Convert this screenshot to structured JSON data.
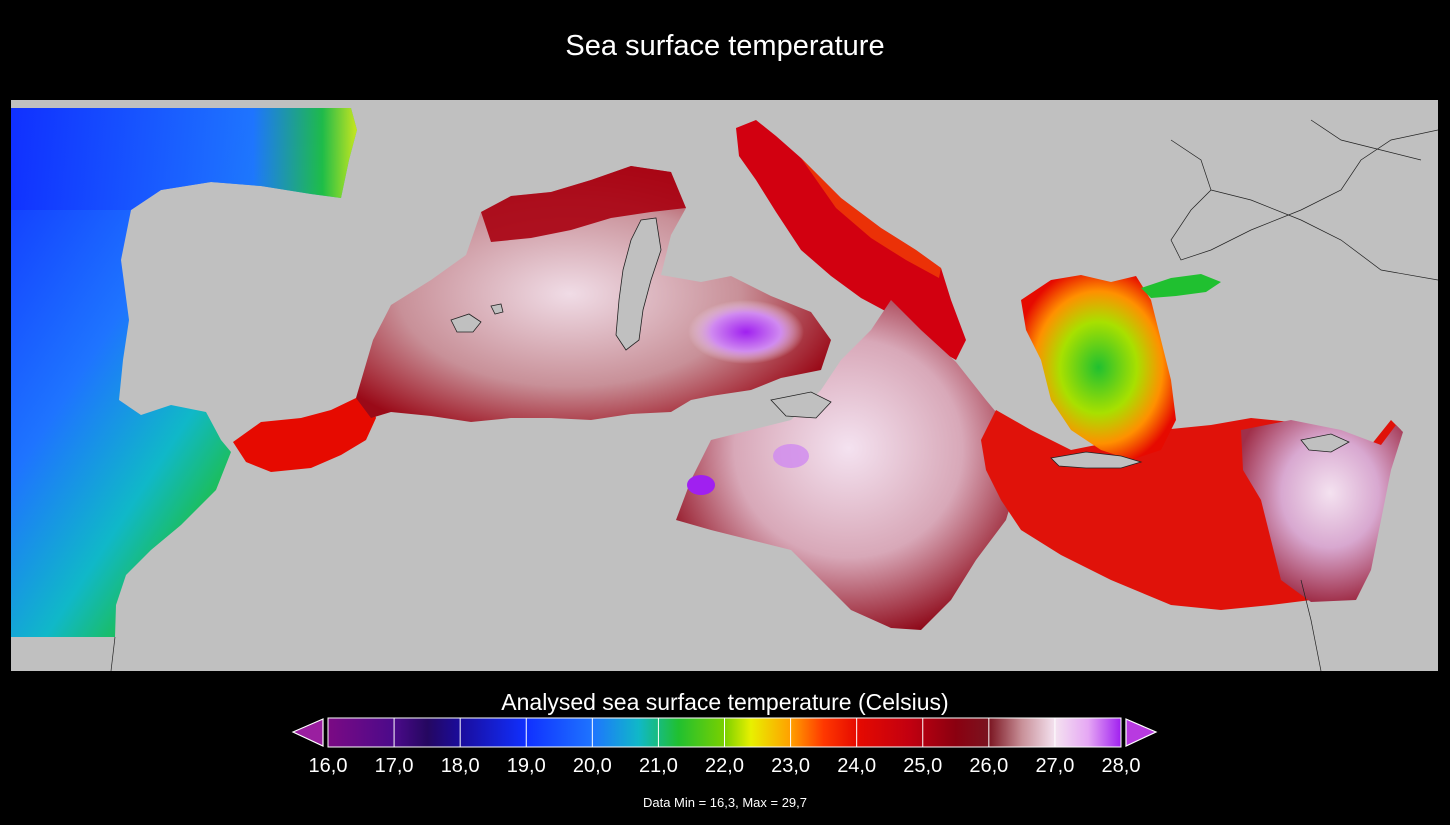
{
  "title": "Sea surface temperature",
  "map": {
    "region": "Mediterranean Sea",
    "land_color": "#c0c0c0",
    "coastline_color": "#222222"
  },
  "colorbar": {
    "label": "Analysed sea surface temperature (Celsius)",
    "min": 16.0,
    "max": 28.0,
    "ticks": [
      "16,0",
      "17,0",
      "18,0",
      "19,0",
      "20,0",
      "21,0",
      "22,0",
      "23,0",
      "24,0",
      "25,0",
      "26,0",
      "27,0",
      "28,0"
    ],
    "extend_low_color": "#9a1fa0",
    "extend_high_color": "#b83ae0",
    "stops": [
      {
        "value": 16.0,
        "color": "#7b0a84"
      },
      {
        "value": 17.0,
        "color": "#4b0a8a"
      },
      {
        "value": 17.5,
        "color": "#250760"
      },
      {
        "value": 18.0,
        "color": "#1a0c9c"
      },
      {
        "value": 19.0,
        "color": "#1030ff"
      },
      {
        "value": 20.0,
        "color": "#1e74ff"
      },
      {
        "value": 20.7,
        "color": "#10b8c8"
      },
      {
        "value": 21.3,
        "color": "#20c030"
      },
      {
        "value": 22.0,
        "color": "#7ad000"
      },
      {
        "value": 22.4,
        "color": "#e8f000"
      },
      {
        "value": 23.0,
        "color": "#ffa000"
      },
      {
        "value": 23.5,
        "color": "#ff3800"
      },
      {
        "value": 24.0,
        "color": "#e60a00"
      },
      {
        "value": 24.8,
        "color": "#c20010"
      },
      {
        "value": 25.5,
        "color": "#8a0010"
      },
      {
        "value": 26.0,
        "color": "#7a1420"
      },
      {
        "value": 26.5,
        "color": "#c89098"
      },
      {
        "value": 27.0,
        "color": "#f4e2f0"
      },
      {
        "value": 27.5,
        "color": "#e6a8f4"
      },
      {
        "value": 28.0,
        "color": "#a020f0"
      }
    ]
  },
  "stats": {
    "text": "Data Min = 16,3, Max = 29,7"
  }
}
